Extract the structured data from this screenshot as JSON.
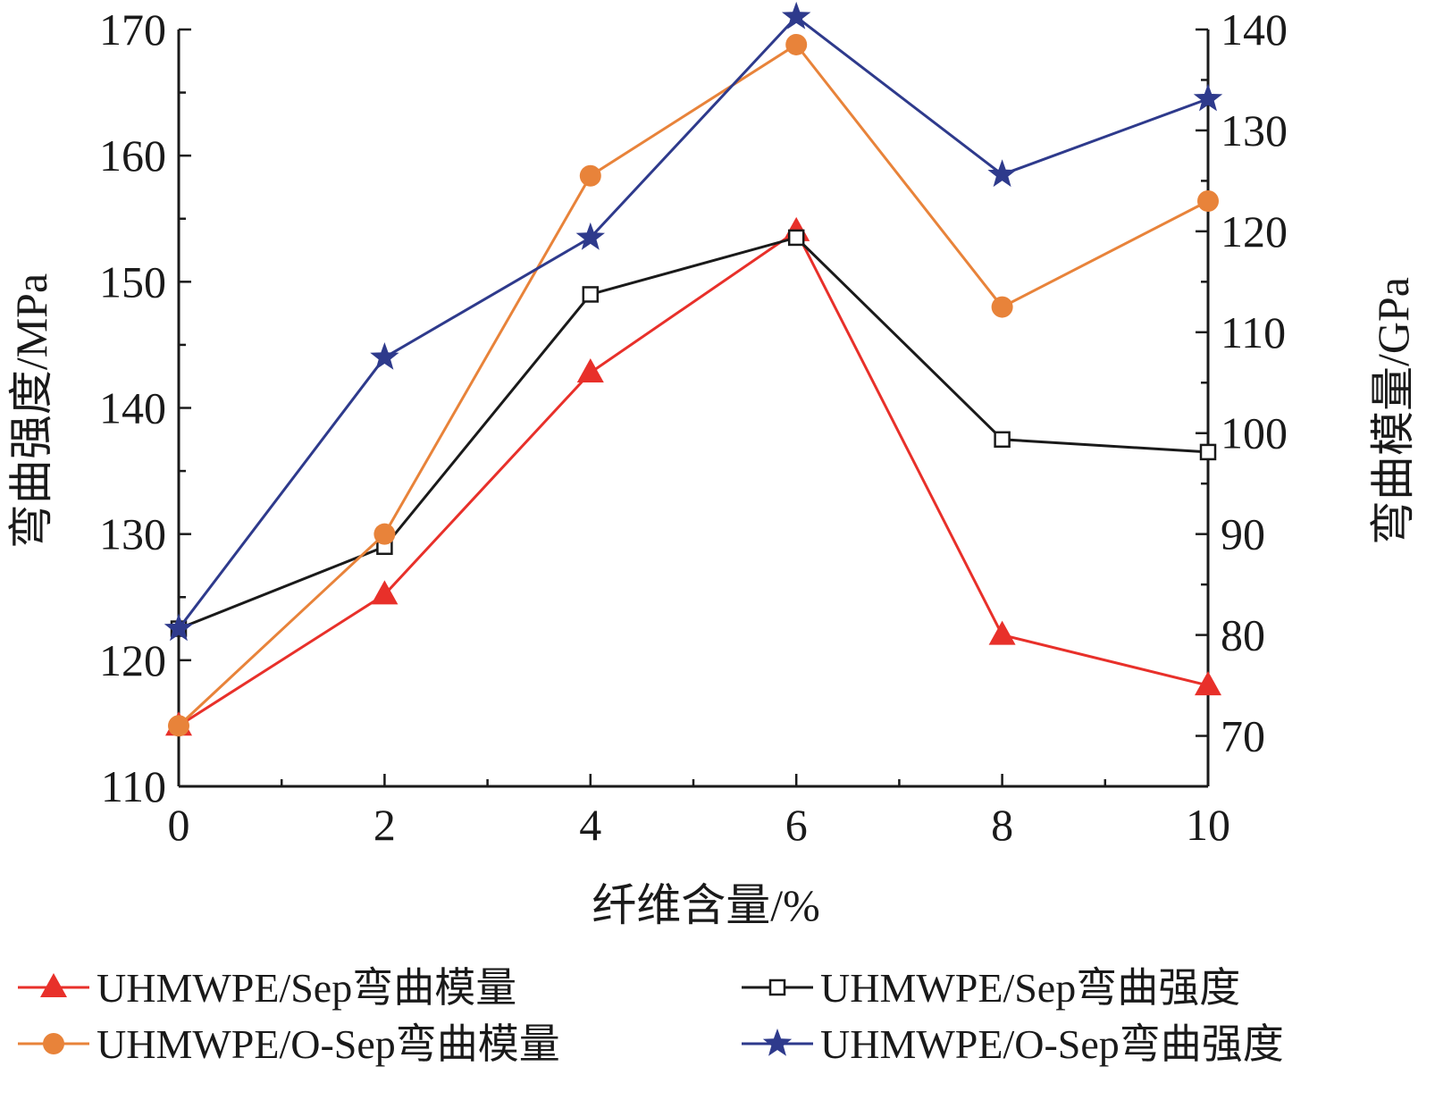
{
  "chart_data": {
    "type": "line",
    "xlabel": "纤维含量/%",
    "ylabel_left": "弯曲强度/MPa",
    "ylabel_right": "弯曲模量/GPa",
    "x": [
      0,
      2,
      4,
      6,
      8,
      10
    ],
    "xticks": [
      "0",
      "2",
      "4",
      "6",
      "8",
      "10"
    ],
    "xlim": [
      0,
      10
    ],
    "ylim_left": [
      110,
      170
    ],
    "yticks_left": [
      "110",
      "120",
      "130",
      "140",
      "150",
      "160",
      "170"
    ],
    "ylim_right": [
      65,
      140
    ],
    "yticks_right": [
      "70",
      "80",
      "90",
      "100",
      "110",
      "120",
      "130",
      "140"
    ],
    "grid": false,
    "legend_position": "bottom",
    "series": [
      {
        "name": "UHMWPE/Sep弯曲模量",
        "axis": "right",
        "marker": "triangle",
        "color": "#e8302a",
        "values": [
          71,
          84,
          106,
          120,
          80,
          75
        ]
      },
      {
        "name": "UHMWPE/Sep弯曲强度",
        "axis": "left",
        "marker": "square-open",
        "color": "#1a1a1a",
        "values": [
          122.5,
          129,
          149,
          153.5,
          137.5,
          136.5
        ]
      },
      {
        "name": "UHMWPE/O-Sep弯曲模量",
        "axis": "right",
        "marker": "circle",
        "color": "#e8833a",
        "values": [
          71,
          90,
          125.5,
          138.5,
          112.5,
          123
        ]
      },
      {
        "name": "UHMWPE/O-Sep弯曲强度",
        "axis": "left",
        "marker": "star",
        "color": "#2e3a8c",
        "values": [
          122.5,
          144,
          153.5,
          171,
          158.5,
          164.5
        ]
      }
    ]
  }
}
